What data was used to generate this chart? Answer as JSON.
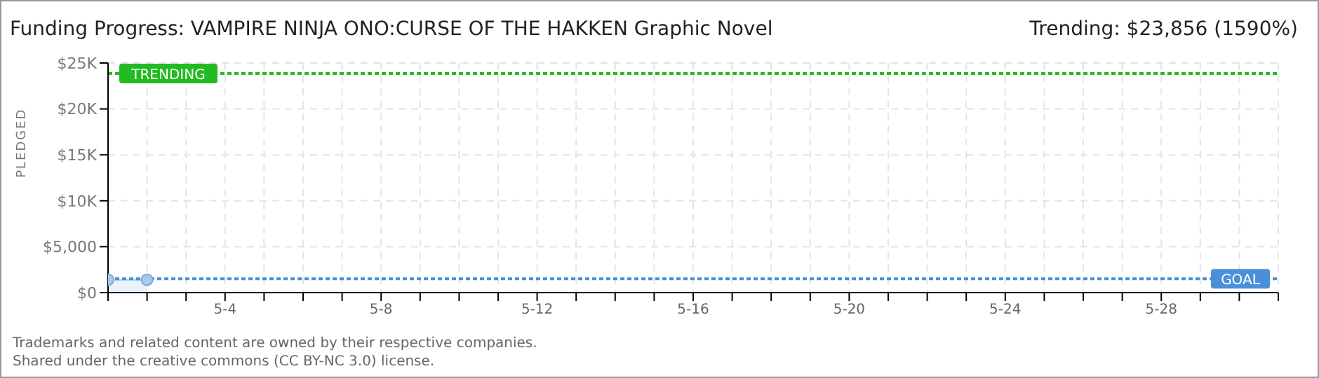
{
  "chart_data": {
    "type": "area",
    "title": "Funding Progress: VAMPIRE NINJA ONO:CURSE OF THE HAKKEN Graphic Novel",
    "subtitle": "Trending:  $23,856 (1590%)",
    "ylabel": "PLEDGED",
    "x": [
      "--05-01",
      "--05-02"
    ],
    "series": [
      {
        "color": "#a8c8ec",
        "values": [
          1400,
          1400
        ]
      }
    ],
    "xlim": [
      "--05-01",
      "--05-31"
    ],
    "xticks": [
      {
        "value": "--05-01",
        "label": null
      },
      {
        "value": "--05-02",
        "label": null
      },
      {
        "value": "--05-03",
        "label": null
      },
      {
        "value": "--05-04",
        "label": "5-4"
      },
      {
        "value": "--05-05",
        "label": null
      },
      {
        "value": "--05-06",
        "label": null
      },
      {
        "value": "--05-07",
        "label": null
      },
      {
        "value": "--05-08",
        "label": "5-8"
      },
      {
        "value": "--05-09",
        "label": null
      },
      {
        "value": "--05-10",
        "label": null
      },
      {
        "value": "--05-11",
        "label": null
      },
      {
        "value": "--05-12",
        "label": "5-12"
      },
      {
        "value": "--05-13",
        "label": null
      },
      {
        "value": "--05-14",
        "label": null
      },
      {
        "value": "--05-15",
        "label": null
      },
      {
        "value": "--05-16",
        "label": "5-16"
      },
      {
        "value": "--05-17",
        "label": null
      },
      {
        "value": "--05-18",
        "label": null
      },
      {
        "value": "--05-19",
        "label": null
      },
      {
        "value": "--05-20",
        "label": "5-20"
      },
      {
        "value": "--05-21",
        "label": null
      },
      {
        "value": "--05-22",
        "label": null
      },
      {
        "value": "--05-23",
        "label": null
      },
      {
        "value": "--05-24",
        "label": "5-24"
      },
      {
        "value": "--05-25",
        "label": null
      },
      {
        "value": "--05-26",
        "label": null
      },
      {
        "value": "--05-27",
        "label": null
      },
      {
        "value": "--05-28",
        "label": "5-28"
      },
      {
        "value": "--05-29",
        "label": null
      },
      {
        "value": "--05-30",
        "label": null
      },
      {
        "value": "--05-31",
        "label": null
      }
    ],
    "ylim": [
      0,
      25000
    ],
    "yticks": [
      {
        "value": 0,
        "label": "$0"
      },
      {
        "value": 5000,
        "label": "$5,000"
      },
      {
        "value": 10000,
        "label": "$10K"
      },
      {
        "value": 15000,
        "label": "$15K"
      },
      {
        "value": 20000,
        "label": "$20K"
      },
      {
        "value": 25000,
        "label": "$25K"
      }
    ],
    "grid": true,
    "marker": "circle",
    "ref_lines": [
      {
        "axis": "y",
        "value": 23856,
        "label": "TRENDING",
        "color": "#22bb22",
        "line_style": "dotted"
      },
      {
        "axis": "y",
        "value": 1500,
        "label": "GOAL",
        "color": "#4a90d9",
        "line_style": "dotted"
      }
    ],
    "annotations": [
      "Trademarks and related content are owned by their respective companies.",
      "Shared under the creative commons (CC BY-NC 3.0) license."
    ]
  }
}
